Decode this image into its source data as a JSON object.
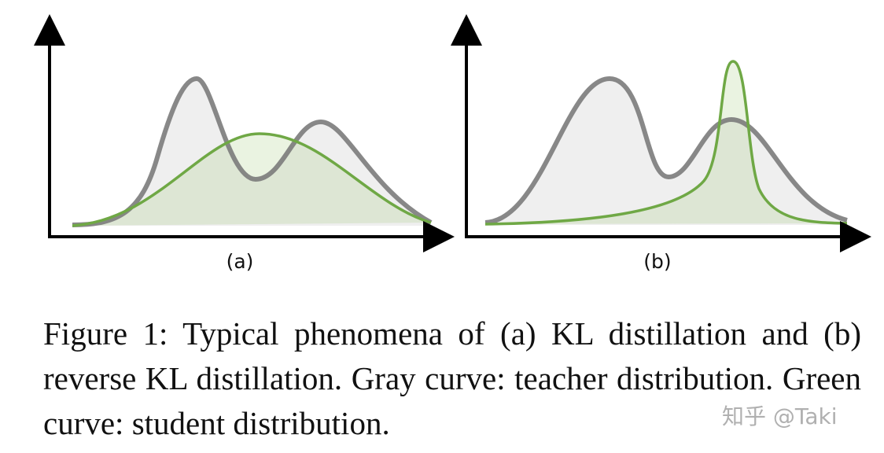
{
  "figure": {
    "panels": [
      {
        "label": "(a)"
      },
      {
        "label": "(b)"
      }
    ],
    "caption": "Figure 1: Typical phenomena of (a) KL distillation and (b) reverse KL distillation. Gray curve: teacher distribution. Green curve: student distribution.",
    "watermark": "知乎 @Taki"
  }
}
